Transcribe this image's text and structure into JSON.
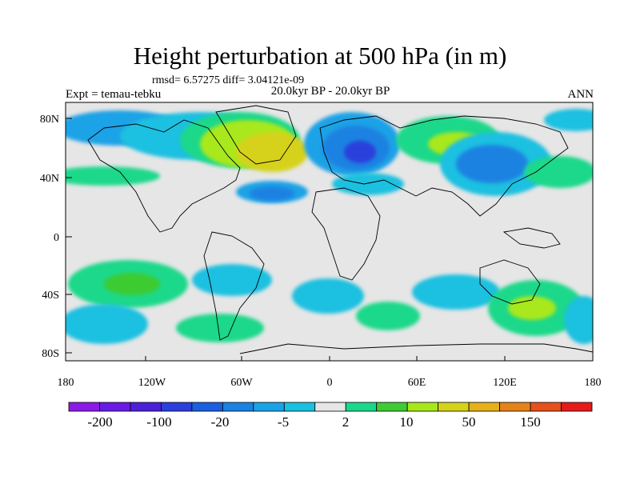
{
  "figure": {
    "title": "Height perturbation at 500 hPa (in m)",
    "stats": "rmsd= 6.57275 diff= 3.04121e-09",
    "period": "20.0kyr BP - 20.0kyr BP",
    "experiment": "Expt = temau-tebku",
    "season": "ANN"
  },
  "axes": {
    "lat_labels": [
      "80N",
      "40N",
      "0",
      "40S",
      "80S"
    ],
    "lon_labels": [
      "180",
      "120W",
      "60W",
      "0",
      "60E",
      "120E",
      "180"
    ]
  },
  "colorbar": {
    "colors": [
      "#8b1ae6",
      "#6a1ae6",
      "#4a21d9",
      "#2b3fdc",
      "#1a5fe0",
      "#1a82e2",
      "#1aa2e6",
      "#1ac0e0",
      "#e6e6e6",
      "#1ad88a",
      "#3ecb33",
      "#a8e81a",
      "#d6d21a",
      "#e6b01a",
      "#e6821a",
      "#e6501a",
      "#e61a1a"
    ],
    "labels": [
      "-200",
      "-100",
      "-20",
      "-5",
      "2",
      "10",
      "50",
      "150"
    ]
  }
}
